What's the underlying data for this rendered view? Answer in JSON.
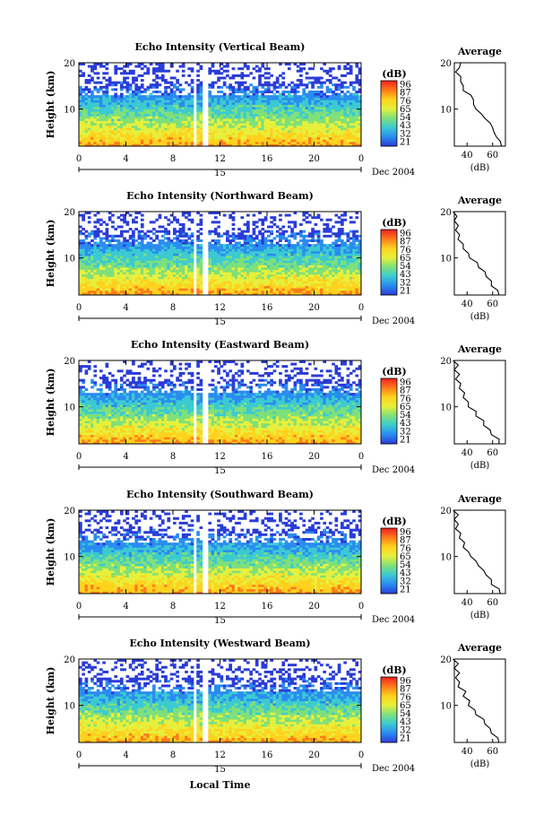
{
  "colorbar": {
    "unit_label": "(dB)",
    "tick_labels": [
      "96",
      "87",
      "76",
      "65",
      "54",
      "43",
      "32",
      "21"
    ],
    "colors": [
      "#f02020",
      "#ff7a1a",
      "#ffd21e",
      "#e6f03c",
      "#7fe07a",
      "#3ccad2",
      "#2a8cf0",
      "#2a3cd8"
    ]
  },
  "shared": {
    "ylabel": "Height (km)",
    "xlabel": "Local Time",
    "x_ticks": [
      "0",
      "4",
      "8",
      "12",
      "16",
      "20",
      "0"
    ],
    "y_ticks": [
      "20",
      "10"
    ],
    "date_day": "15",
    "date_month": "Dec 2004",
    "avg_title": "Average",
    "avg_xlabel": "(dB)",
    "avg_x_ticks": [
      "40",
      "60"
    ],
    "avg_y_ticks": [
      "20",
      "10"
    ]
  },
  "chart_data": [
    {
      "type": "heatmap",
      "title": "Echo Intensity (Vertical Beam)",
      "xlabel": "",
      "ylabel": "Height (km)",
      "xlim": [
        0,
        24
      ],
      "ylim": [
        2,
        20
      ],
      "color_range_db": [
        21,
        96
      ],
      "data_gaps_hours": [
        [
          9.7,
          10.1
        ],
        [
          10.6,
          11.1
        ]
      ],
      "average_profile": {
        "xlim": [
          30,
          70
        ],
        "height_km": [
          2,
          3,
          4,
          5,
          6,
          7,
          8,
          9,
          10,
          11,
          12,
          13,
          14,
          15,
          16,
          17,
          18,
          19,
          20
        ],
        "db": [
          68,
          65,
          64,
          60,
          61,
          57,
          55,
          50,
          48,
          44,
          46,
          42,
          38,
          36,
          36,
          34,
          32,
          33,
          36
        ]
      }
    },
    {
      "type": "heatmap",
      "title": "Echo Intensity (Northward Beam)",
      "xlabel": "",
      "ylabel": "Height (km)",
      "xlim": [
        0,
        24
      ],
      "ylim": [
        2,
        20
      ],
      "color_range_db": [
        21,
        96
      ],
      "data_gaps_hours": [
        [
          9.7,
          10.1
        ],
        [
          10.6,
          11.1
        ]
      ],
      "average_profile": {
        "xlim": [
          30,
          70
        ],
        "height_km": [
          2,
          3,
          4,
          5,
          6,
          7,
          8,
          9,
          10,
          11,
          12,
          13,
          14,
          15,
          16,
          17,
          18,
          19,
          20
        ],
        "db": [
          66,
          63,
          60,
          58,
          56,
          53,
          50,
          47,
          43,
          40,
          38,
          36,
          34,
          33,
          32,
          32,
          31,
          31,
          30
        ]
      }
    },
    {
      "type": "heatmap",
      "title": "Echo Intensity (Eastward Beam)",
      "xlabel": "",
      "ylabel": "Height (km)",
      "xlim": [
        0,
        24
      ],
      "ylim": [
        2,
        20
      ],
      "color_range_db": [
        21,
        96
      ],
      "data_gaps_hours": [
        [
          9.7,
          10.1
        ],
        [
          10.6,
          11.1
        ]
      ],
      "average_profile": {
        "xlim": [
          30,
          70
        ],
        "height_km": [
          2,
          3,
          4,
          5,
          6,
          7,
          8,
          9,
          10,
          11,
          12,
          13,
          14,
          15,
          16,
          17,
          18,
          19,
          20
        ],
        "db": [
          66,
          64,
          60,
          57,
          54,
          52,
          48,
          46,
          42,
          40,
          38,
          37,
          35,
          34,
          32,
          33,
          31,
          32,
          30
        ]
      }
    },
    {
      "type": "heatmap",
      "title": "Echo Intensity (Southward Beam)",
      "xlabel": "",
      "ylabel": "Height (km)",
      "xlim": [
        0,
        24
      ],
      "ylim": [
        2,
        20
      ],
      "color_range_db": [
        21,
        96
      ],
      "data_gaps_hours": [
        [
          9.7,
          10.1
        ],
        [
          10.6,
          11.1
        ]
      ],
      "average_profile": {
        "xlim": [
          30,
          70
        ],
        "height_km": [
          2,
          3,
          4,
          5,
          6,
          7,
          8,
          9,
          10,
          11,
          12,
          13,
          14,
          15,
          16,
          17,
          18,
          19,
          20
        ],
        "db": [
          67,
          64,
          60,
          58,
          56,
          52,
          50,
          46,
          44,
          40,
          38,
          37,
          35,
          34,
          32,
          32,
          31,
          32,
          30
        ]
      }
    },
    {
      "type": "heatmap",
      "title": "Echo Intensity (Westward Beam)",
      "xlabel": "Local Time",
      "ylabel": "Height (km)",
      "xlim": [
        0,
        24
      ],
      "ylim": [
        2,
        20
      ],
      "color_range_db": [
        21,
        96
      ],
      "data_gaps_hours": [
        [
          9.7,
          10.1
        ],
        [
          10.6,
          11.1
        ]
      ],
      "average_profile": {
        "xlim": [
          30,
          70
        ],
        "height_km": [
          2,
          3,
          4,
          5,
          6,
          7,
          8,
          9,
          10,
          11,
          12,
          13,
          14,
          15,
          16,
          17,
          18,
          19,
          20
        ],
        "db": [
          66,
          63,
          60,
          57,
          55,
          52,
          48,
          45,
          42,
          41,
          38,
          38,
          34,
          33,
          32,
          33,
          31,
          32,
          30
        ]
      }
    }
  ]
}
